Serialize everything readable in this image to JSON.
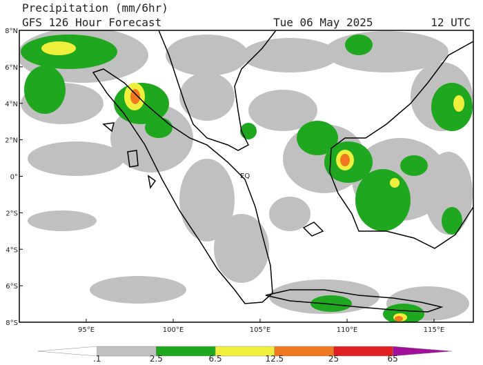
{
  "header": {
    "title": "Precipitation (mm/6hr)",
    "subtitle": "GFS 126 Hour Forecast",
    "date": "Tue 06 May 2025",
    "time": "12 UTC"
  },
  "map": {
    "lat_labels": [
      "8°N",
      "6°N",
      "4°N",
      "2°N",
      "0°",
      "2°S",
      "4°S",
      "6°S",
      "8°S"
    ],
    "lon_labels": [
      "95°E",
      "100°E",
      "105°E",
      "110°E",
      "115°E"
    ],
    "equator_label": "EQ"
  },
  "colorbar": {
    "labels": [
      ".1",
      "2.5",
      "6.5",
      "12.5",
      "25",
      "65"
    ],
    "colors": [
      "#ffffff",
      "#c0c0c0",
      "#1fa81f",
      "#f0f03c",
      "#f07820",
      "#e02020",
      "#a0109a"
    ]
  }
}
